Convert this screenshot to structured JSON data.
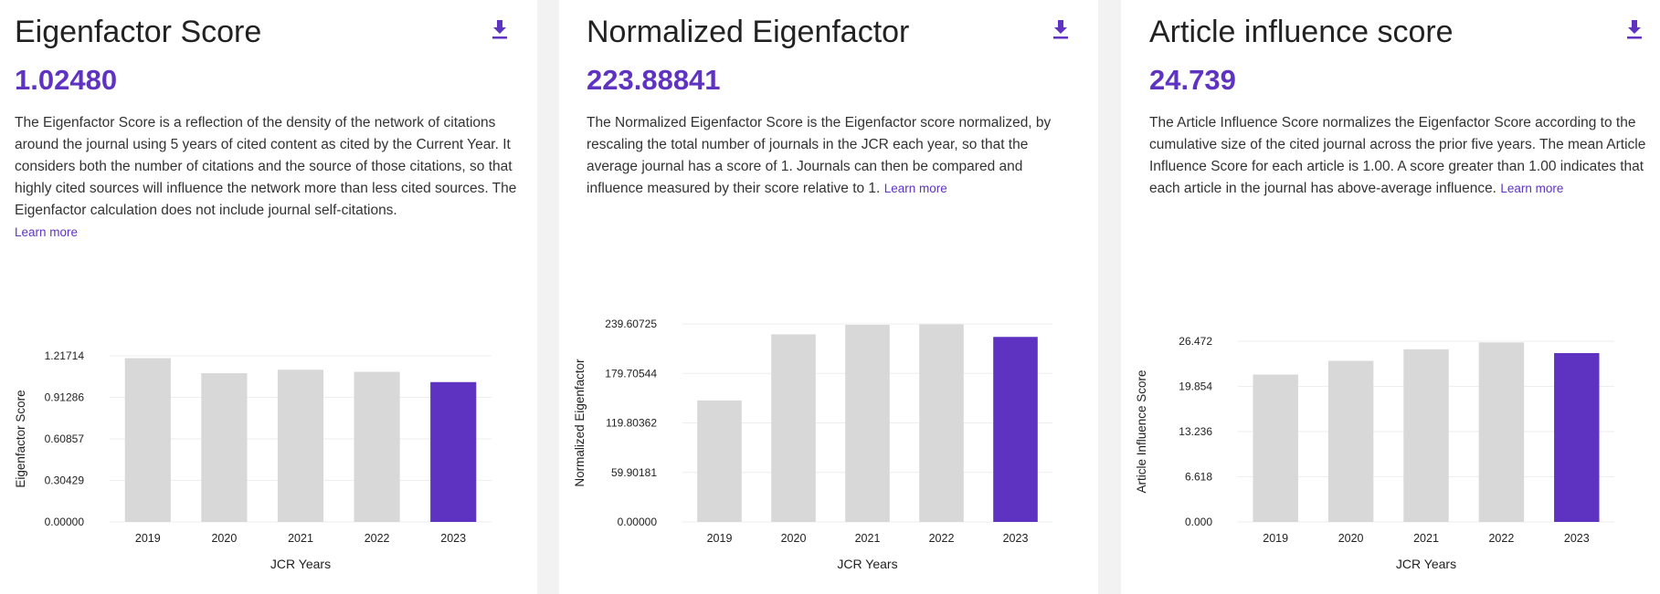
{
  "colors": {
    "accent": "#5f33c1",
    "bar": "#d8d8d8",
    "grid": "#eeeeee"
  },
  "panels": [
    {
      "title": "Eigenfactor Score",
      "value": "1.02480",
      "description": "The Eigenfactor Score is a reflection of the density of the network of citations around the journal using 5 years of cited content as cited by the Current Year. It considers both the number of citations and the source of those citations, so that highly cited sources will influence the network more than less cited sources. The Eigenfactor calculation does not include journal self-citations.",
      "learn_more": "Learn more",
      "download_icon": "download-icon"
    },
    {
      "title": "Normalized Eigenfactor",
      "value": "223.88841",
      "description": "The Normalized Eigenfactor Score is the Eigenfactor score normalized, by rescaling the total number of journals in the JCR each year, so that the average journal has a score of 1. Journals can then be compared and influence measured by their score relative to 1.",
      "learn_more": "Learn more",
      "download_icon": "download-icon"
    },
    {
      "title": "Article influence score",
      "value": "24.739",
      "description": "The Article Influence Score normalizes the Eigenfactor Score according to the cumulative size of the cited journal across the prior five years. The mean Article Influence Score for each article is 1.00. A score greater than 1.00 indicates that each article in the journal has above-average influence.",
      "learn_more": "Learn more",
      "download_icon": "download-icon"
    }
  ],
  "chart_data": [
    {
      "type": "bar",
      "categories": [
        "2019",
        "2020",
        "2021",
        "2022",
        "2023"
      ],
      "values": [
        1.2,
        1.09,
        1.115,
        1.1,
        1.0248
      ],
      "highlight_index": 4,
      "xlabel": "JCR Years",
      "ylabel": "Eigenfactor Score",
      "yticks": [
        "0.00000",
        "0.30429",
        "0.60857",
        "0.91286",
        "1.21714"
      ],
      "ylim": [
        0,
        1.21714
      ],
      "grid": true
    },
    {
      "type": "bar",
      "categories": [
        "2019",
        "2020",
        "2021",
        "2022",
        "2023"
      ],
      "values": [
        147.0,
        227.0,
        238.5,
        239.0,
        223.88841
      ],
      "highlight_index": 4,
      "xlabel": "JCR Years",
      "ylabel": "Normalized Eigenfactor",
      "yticks": [
        "0.00000",
        "59.90181",
        "119.80362",
        "179.70544",
        "239.60725"
      ],
      "ylim": [
        0,
        239.60725
      ],
      "grid": true
    },
    {
      "type": "bar",
      "categories": [
        "2019",
        "2020",
        "2021",
        "2022",
        "2023"
      ],
      "values": [
        21.6,
        23.6,
        25.3,
        26.3,
        24.739
      ],
      "highlight_index": 4,
      "xlabel": "JCR Years",
      "ylabel": "Article Influence Score",
      "yticks": [
        "0.000",
        "6.618",
        "13.236",
        "19.854",
        "26.472"
      ],
      "ylim": [
        0,
        26.472
      ],
      "grid": true
    }
  ]
}
